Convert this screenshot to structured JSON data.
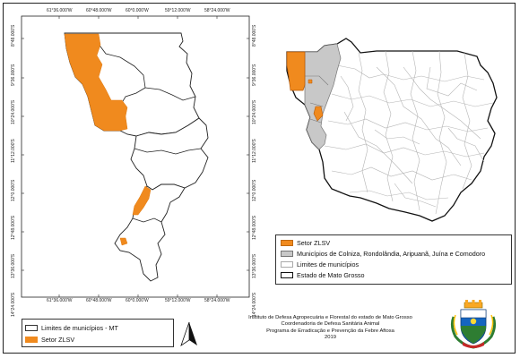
{
  "left_map": {
    "top_ticks": [
      "61°36.000'W",
      "60°48.000'W",
      "60°0.000'W",
      "59°12.000'W",
      "58°24.000'W"
    ],
    "bottom_ticks": [
      "61°36.000'W",
      "60°48.000'W",
      "60°0.000'W",
      "59°12.000'W",
      "58°24.000'W"
    ],
    "left_ticks": [
      "8°48.000'S",
      "9°36.000'S",
      "10°24.000'S",
      "11°12.000'S",
      "12°0.000'S",
      "12°48.000'S",
      "13°36.000'S",
      "14°24.000'S"
    ],
    "right_ticks": [
      "8°48.000'S",
      "9°36.000'S",
      "10°24.000'S",
      "11°12.000'S",
      "12°0.000'S",
      "12°48.000'S",
      "13°36.000'S",
      "14°24.000'S"
    ]
  },
  "left_legend": {
    "items": [
      {
        "label": "Limites de municípios - MT",
        "fill": "#ffffff",
        "stroke": "#333333"
      },
      {
        "label": "Setor ZLSV",
        "fill": "#f08a1e",
        "stroke": "#f08a1e"
      }
    ]
  },
  "right_legend": {
    "items": [
      {
        "label": "Setor ZLSV",
        "fill": "#f08a1e",
        "stroke": "#c06a10"
      },
      {
        "label": "Municípios de Colniza, Rondolândia, Aripuanã, Juína e Comodoro",
        "fill": "#c8c8c8",
        "stroke": "#777777"
      },
      {
        "label": "Limites de municípios",
        "fill": "#ffffff",
        "stroke": "#aaaaaa"
      },
      {
        "label": "Estado de Mato Grosso",
        "fill": "#ffffff",
        "stroke": "#111111"
      }
    ]
  },
  "institution": {
    "lines": [
      "Instituto de Defesa Agropecuária e Florestal do estado de Mato Grosso",
      "Coordenadoria de Defesa Sanitária Animal",
      "Programa de Erradicação e Prevenção da Febre Aftosa",
      "2019"
    ]
  },
  "colors": {
    "zlsv": "#f08a1e",
    "municipios": "#c8c8c8",
    "border": "#222222"
  },
  "icons": {
    "north_arrow": "north-arrow-icon",
    "coat_of_arms": "coat-of-arms-icon"
  }
}
